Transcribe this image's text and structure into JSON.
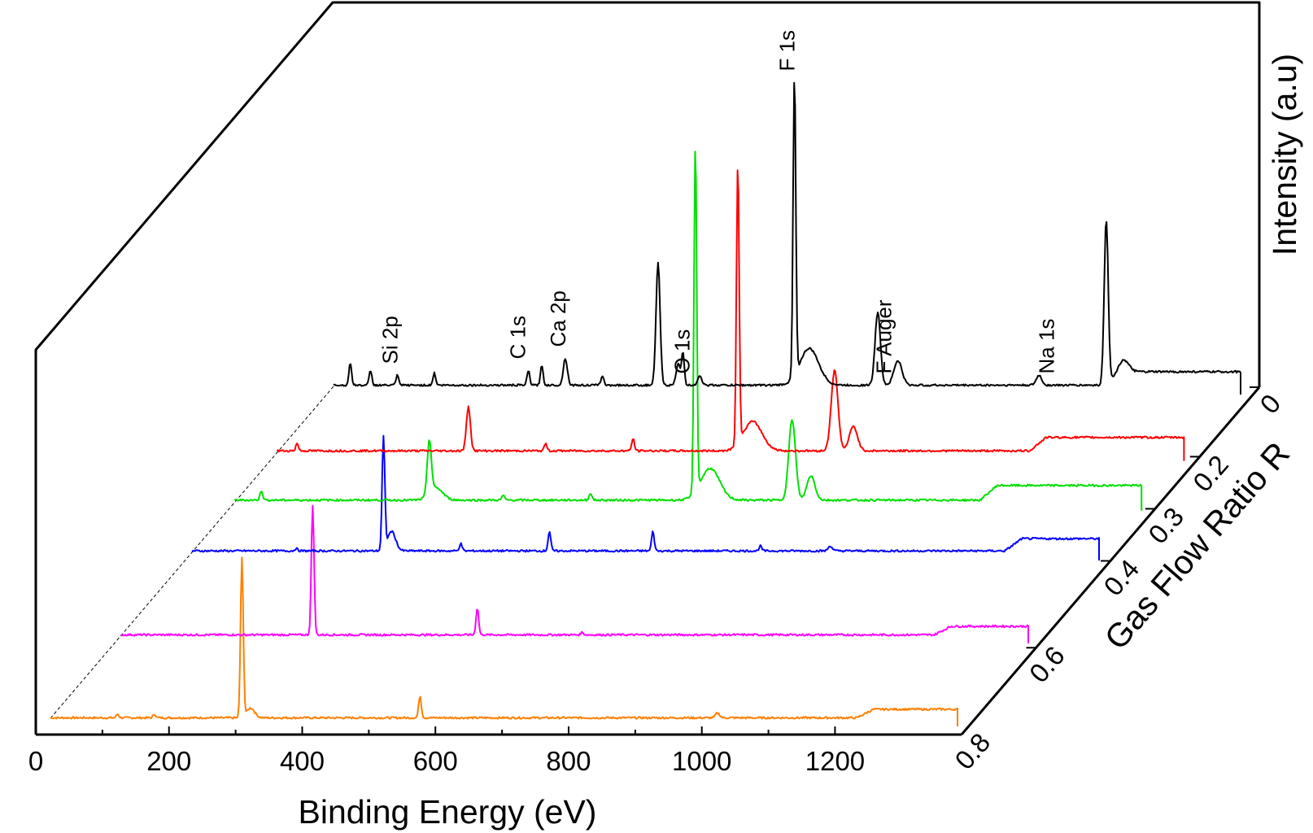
{
  "chart_data": {
    "type": "line",
    "subtype": "3d-waterfall",
    "xlabel": "Binding Energy (eV)",
    "zlabel": "Gas Flow Ratio R",
    "ylabel": "Intensity (a.u)",
    "xlim": [
      0,
      1350
    ],
    "x_ticks": [
      "0",
      "200",
      "400",
      "600",
      "800",
      "1000",
      "1200"
    ],
    "z_ticks": [
      "0",
      "0.2",
      "0.3",
      "0.4",
      "0.6",
      "0.8"
    ],
    "series": [
      {
        "name": "0",
        "color": "#000000",
        "baseline": 0.05,
        "tail": 0.55,
        "tail_start": 1150,
        "peaks": [
          {
            "x": 25,
            "h": 0.9,
            "w": 2
          },
          {
            "x": 55,
            "h": 0.6,
            "w": 2
          },
          {
            "x": 95,
            "h": 0.4,
            "w": 2
          },
          {
            "x": 150,
            "h": 0.5,
            "w": 2
          },
          {
            "x": 290,
            "h": 0.6,
            "w": 2
          },
          {
            "x": 310,
            "h": 0.8,
            "w": 2
          },
          {
            "x": 345,
            "h": 1.1,
            "w": 3
          },
          {
            "x": 400,
            "h": 0.4,
            "w": 2
          },
          {
            "x": 483,
            "h": 5.0,
            "w": 3
          },
          {
            "x": 513,
            "h": 0.9,
            "w": 3
          },
          {
            "x": 520,
            "h": 1.3,
            "w": 2
          },
          {
            "x": 545,
            "h": 0.4,
            "w": 3
          },
          {
            "x": 686,
            "h": 12.4,
            "w": 2
          },
          {
            "x": 708,
            "h": 1.5,
            "w": 14
          },
          {
            "x": 810,
            "h": 3.0,
            "w": 4
          },
          {
            "x": 840,
            "h": 1.0,
            "w": 6
          },
          {
            "x": 1050,
            "h": 0.4,
            "w": 4
          },
          {
            "x": 1150,
            "h": 6.8,
            "w": 3
          },
          {
            "x": 1175,
            "h": 0.5,
            "w": 8
          }
        ]
      },
      {
        "name": "0.2",
        "color": "#ff0000",
        "baseline": 0.08,
        "tail": 0.55,
        "tail_start": 1120,
        "peaks": [
          {
            "x": 30,
            "h": 0.3,
            "w": 2
          },
          {
            "x": 285,
            "h": 1.8,
            "w": 3
          },
          {
            "x": 400,
            "h": 0.3,
            "w": 2
          },
          {
            "x": 530,
            "h": 0.5,
            "w": 2
          },
          {
            "x": 686,
            "h": 11.5,
            "w": 2
          },
          {
            "x": 708,
            "h": 1.2,
            "w": 14
          },
          {
            "x": 830,
            "h": 3.3,
            "w": 5
          },
          {
            "x": 858,
            "h": 1.0,
            "w": 6
          }
        ]
      },
      {
        "name": "0.3",
        "color": "#00e000",
        "baseline": 0.1,
        "tail": 0.6,
        "tail_start": 1110,
        "peaks": [
          {
            "x": 40,
            "h": 0.4,
            "w": 2
          },
          {
            "x": 290,
            "h": 2.2,
            "w": 3
          },
          {
            "x": 300,
            "h": 0.5,
            "w": 10
          },
          {
            "x": 400,
            "h": 0.2,
            "w": 2
          },
          {
            "x": 530,
            "h": 0.3,
            "w": 2
          },
          {
            "x": 686,
            "h": 14.4,
            "w": 2
          },
          {
            "x": 708,
            "h": 1.3,
            "w": 14
          },
          {
            "x": 830,
            "h": 3.3,
            "w": 5
          },
          {
            "x": 858,
            "h": 1.0,
            "w": 6
          }
        ]
      },
      {
        "name": "0.4",
        "color": "#0000ff",
        "baseline": 0.06,
        "tail": 0.5,
        "tail_start": 1210,
        "peaks": [
          {
            "x": 155,
            "h": 0.1,
            "w": 2
          },
          {
            "x": 285,
            "h": 4.6,
            "w": 2
          },
          {
            "x": 297,
            "h": 0.8,
            "w": 6
          },
          {
            "x": 400,
            "h": 0.3,
            "w": 2
          },
          {
            "x": 532,
            "h": 0.8,
            "w": 2
          },
          {
            "x": 686,
            "h": 0.8,
            "w": 2
          },
          {
            "x": 846,
            "h": 0.2,
            "w": 2
          },
          {
            "x": 950,
            "h": 0.2,
            "w": 3
          }
        ]
      },
      {
        "name": "0.6",
        "color": "#ff00ff",
        "baseline": 0.02,
        "tail": 0.35,
        "tail_start": 1210,
        "peaks": [
          {
            "x": 285,
            "h": 5.3,
            "w": 2
          },
          {
            "x": 530,
            "h": 1.1,
            "w": 2
          },
          {
            "x": 686,
            "h": 0.1,
            "w": 2
          }
        ]
      },
      {
        "name": "0.8",
        "color": "#ff8000",
        "baseline": 0.02,
        "tail": 0.35,
        "tail_start": 1200,
        "peaks": [
          {
            "x": 100,
            "h": 0.15,
            "w": 2
          },
          {
            "x": 155,
            "h": 0.15,
            "w": 2
          },
          {
            "x": 285,
            "h": 6.5,
            "w": 2
          },
          {
            "x": 298,
            "h": 0.4,
            "w": 6
          },
          {
            "x": 550,
            "h": 0.9,
            "w": 2
          },
          {
            "x": 993,
            "h": 0.2,
            "w": 3
          }
        ]
      }
    ],
    "annotations": [
      {
        "text": "Si 2p",
        "x": 95
      },
      {
        "text": "C 1s",
        "x": 285
      },
      {
        "text": "Ca 2p",
        "x": 345
      },
      {
        "text": "O 1s",
        "x": 530
      },
      {
        "text": "F 1s",
        "x": 686
      },
      {
        "text": "F Auger",
        "x": 830
      },
      {
        "text": "Na 1s",
        "x": 1072
      }
    ]
  }
}
